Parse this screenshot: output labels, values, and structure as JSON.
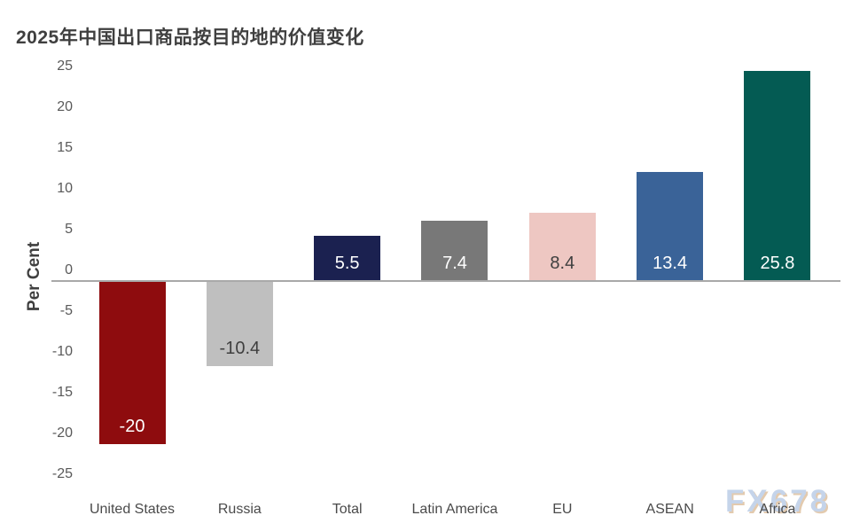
{
  "title": "2025年中国出口商品按目的地的价值变化",
  "watermark": {
    "text": "FX678"
  },
  "chart_data": {
    "type": "bar",
    "title": "2025年中国出口商品按目的地的价值变化",
    "xlabel": "",
    "ylabel": "Per Cent",
    "ylim": [
      -25,
      25
    ],
    "yticks": [
      25,
      20,
      15,
      10,
      5,
      0,
      -5,
      -10,
      -15,
      -20,
      -25
    ],
    "grid": false,
    "legend": false,
    "categories": [
      "United States",
      "Russia",
      "Total",
      "Latin America",
      "EU",
      "ASEAN",
      "Africa"
    ],
    "values": [
      -20,
      -10.4,
      5.5,
      7.4,
      8.4,
      13.4,
      25.8
    ],
    "data_labels": [
      "-20",
      "-10.4",
      "5.5",
      "7.4",
      "8.4",
      "13.4",
      "25.8"
    ],
    "bar_colors": [
      "#8e0c0e",
      "#bfbfbf",
      "#1b2150",
      "#787878",
      "#eec7c2",
      "#3a6398",
      "#045b53"
    ],
    "label_text_colors": [
      "#ffffff",
      "#3f3f3f",
      "#ffffff",
      "#ffffff",
      "#3f3f3f",
      "#ffffff",
      "#ffffff"
    ]
  },
  "colors": {
    "background": "#ffffff",
    "title_text": "#3f3f3f",
    "ylabel_text": "#3f3f3f",
    "axis_line": "#a9a9a9",
    "tick_text": "#595959",
    "category_text": "#4a4a4a",
    "watermark_fill": "#c5d4ea",
    "watermark_shadow": "#e3caae"
  }
}
